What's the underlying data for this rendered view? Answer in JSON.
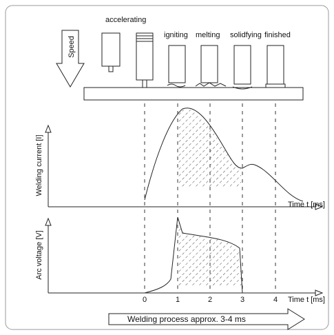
{
  "speed": "Speed",
  "stages": [
    "accelerating",
    "igniting",
    "melting",
    "solidfying",
    "finished"
  ],
  "current_axis": "Welding current [I]",
  "voltage_axis": "Arc voltage [V]",
  "time_axis_labels": [
    "Time t [ms]",
    "Time t [ms]"
  ],
  "ticks": [
    "0",
    "1",
    "2",
    "3",
    "4"
  ],
  "process": "Welding process approx. 3-4 ms"
}
